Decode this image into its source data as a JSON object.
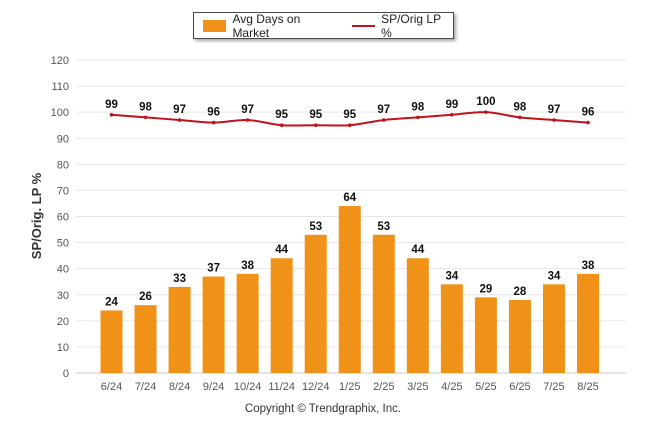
{
  "chart_data": {
    "type": "bar",
    "categories": [
      "6/24",
      "7/24",
      "8/24",
      "9/24",
      "10/24",
      "11/24",
      "12/24",
      "1/25",
      "2/25",
      "3/25",
      "4/25",
      "5/25",
      "6/25",
      "7/25",
      "8/25"
    ],
    "series": [
      {
        "name": "Avg Days on Market",
        "type": "bar",
        "color": "#F09218",
        "values": [
          24,
          26,
          33,
          37,
          38,
          44,
          53,
          64,
          53,
          44,
          34,
          29,
          28,
          34,
          38
        ]
      },
      {
        "name": "SP/Orig LP %",
        "type": "line",
        "color": "#C0121C",
        "values": [
          99,
          98,
          97,
          96,
          97,
          95,
          95,
          95,
          97,
          98,
          99,
          100,
          98,
          97,
          96
        ]
      }
    ],
    "ylabel": "SP/Orig. LP %",
    "ylim": [
      0,
      120
    ],
    "yticks": [
      0,
      10,
      20,
      30,
      40,
      50,
      60,
      70,
      80,
      90,
      100,
      110,
      120
    ],
    "grid": true,
    "legend": "top-center"
  },
  "footer": {
    "copyright": "Copyright © Trendgraphix, Inc."
  }
}
